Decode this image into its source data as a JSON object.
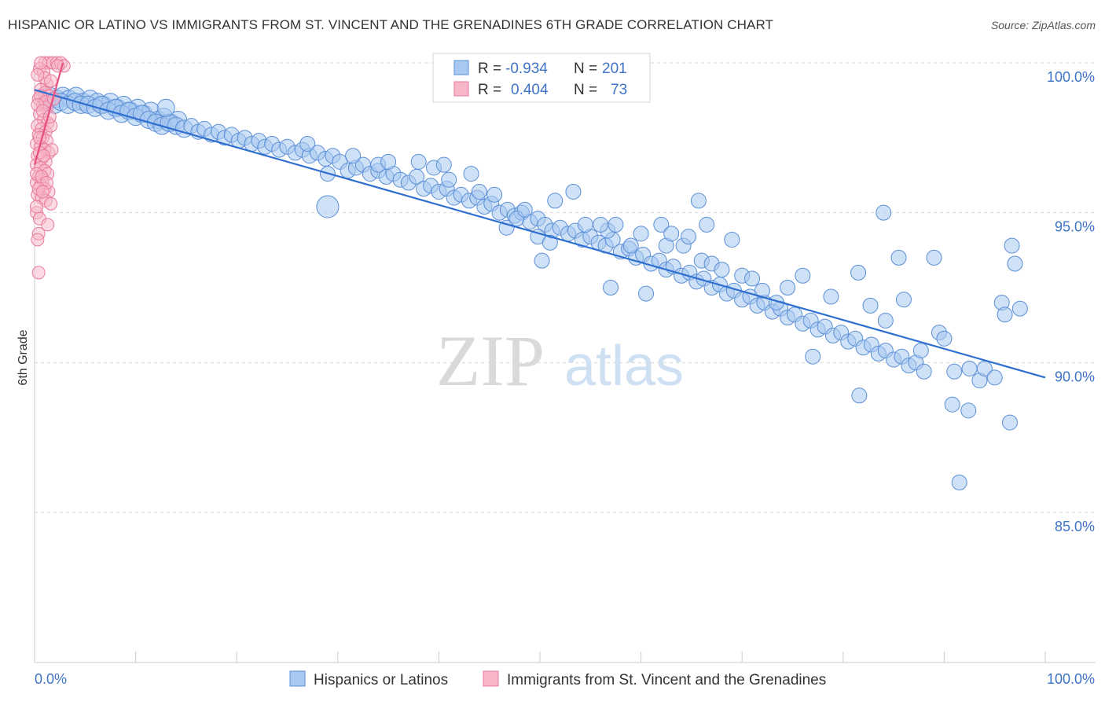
{
  "title": "HISPANIC OR LATINO VS IMMIGRANTS FROM ST. VINCENT AND THE GRENADINES 6TH GRADE CORRELATION CHART",
  "source": "Source: ZipAtlas.com",
  "watermark": {
    "zip": "ZIP",
    "atlas": "atlas"
  },
  "colors": {
    "blue_fill": "#a8c8f0",
    "blue_stroke": "#5b8fd6",
    "blue_line": "#2f6fd0",
    "pink_fill": "#f7b6c8",
    "pink_stroke": "#e87a9c",
    "pink_line": "#e5507e",
    "tick_label": "#3d74c8",
    "grid": "#d9d9d9",
    "axis_title": "#333333"
  },
  "chart_data": {
    "type": "scatter",
    "ylabel": "6th Grade",
    "xlim": [
      0,
      100
    ],
    "ylim": [
      80.4,
      101.4
    ],
    "x_tick_labels": [
      {
        "value": 0,
        "label": "0.0%"
      },
      {
        "value": 100,
        "label": "100.0%"
      }
    ],
    "y_tick_labels": [
      {
        "value": 100,
        "label": "100.0%"
      },
      {
        "value": 95,
        "label": "95.0%"
      },
      {
        "value": 90,
        "label": "90.0%"
      },
      {
        "value": 85,
        "label": "85.0%"
      }
    ],
    "y_gridlines": [
      100,
      95,
      90,
      85
    ],
    "x_minor_ticks": [
      10,
      20,
      30,
      40,
      50,
      60,
      70,
      80,
      90,
      100
    ],
    "stats": [
      {
        "r_label": "R =",
        "r": "-0.934",
        "n_label": "N =",
        "n": "201"
      },
      {
        "r_label": "R =",
        "r": "0.404",
        "n_label": "N =",
        "n": "73"
      }
    ],
    "series": [
      {
        "name": "Hispanics or Latinos",
        "color": "blue",
        "trend": {
          "x0": 0,
          "y0": 99.1,
          "x1": 100,
          "y1": 89.5
        },
        "points": [
          [
            1.5,
            98.9
          ],
          [
            2.2,
            98.8
          ],
          [
            2.8,
            98.9
          ],
          [
            3.4,
            98.8
          ],
          [
            4.1,
            98.9
          ],
          [
            4.8,
            98.7
          ],
          [
            5.5,
            98.8
          ],
          [
            6.2,
            98.7
          ],
          [
            6.8,
            98.6
          ],
          [
            7.5,
            98.7
          ],
          [
            8.2,
            98.5
          ],
          [
            8.8,
            98.6
          ],
          [
            9.5,
            98.4
          ],
          [
            10.2,
            98.5
          ],
          [
            10.8,
            98.3
          ],
          [
            11.5,
            98.4
          ],
          [
            12.2,
            98.1
          ],
          [
            12.8,
            98.2
          ],
          [
            13.5,
            98.0
          ],
          [
            14.2,
            98.1
          ],
          [
            1.2,
            98.7
          ],
          [
            2.0,
            98.6
          ],
          [
            2.6,
            98.7
          ],
          [
            3.3,
            98.6
          ],
          [
            4.0,
            98.7
          ],
          [
            4.6,
            98.6
          ],
          [
            5.3,
            98.6
          ],
          [
            6.0,
            98.5
          ],
          [
            6.6,
            98.6
          ],
          [
            7.3,
            98.4
          ],
          [
            8.0,
            98.5
          ],
          [
            8.6,
            98.3
          ],
          [
            9.3,
            98.4
          ],
          [
            10.0,
            98.2
          ],
          [
            10.6,
            98.3
          ],
          [
            11.3,
            98.1
          ],
          [
            12.0,
            98.0
          ],
          [
            12.6,
            97.9
          ],
          [
            13.3,
            98.0
          ],
          [
            14.0,
            97.9
          ],
          [
            14.8,
            97.8
          ],
          [
            15.5,
            97.9
          ],
          [
            16.2,
            97.7
          ],
          [
            16.8,
            97.8
          ],
          [
            17.5,
            97.6
          ],
          [
            18.2,
            97.7
          ],
          [
            18.8,
            97.5
          ],
          [
            19.5,
            97.6
          ],
          [
            20.2,
            97.4
          ],
          [
            20.8,
            97.5
          ],
          [
            21.5,
            97.3
          ],
          [
            22.2,
            97.4
          ],
          [
            22.8,
            97.2
          ],
          [
            23.5,
            97.3
          ],
          [
            24.2,
            97.1
          ],
          [
            25.0,
            97.2
          ],
          [
            25.8,
            97.0
          ],
          [
            26.5,
            97.1
          ],
          [
            27.2,
            96.9
          ],
          [
            28.0,
            97.0
          ],
          [
            28.8,
            96.8
          ],
          [
            29.5,
            96.9
          ],
          [
            30.2,
            96.7
          ],
          [
            31.0,
            96.4
          ],
          [
            31.8,
            96.5
          ],
          [
            32.5,
            96.6
          ],
          [
            33.2,
            96.3
          ],
          [
            34.0,
            96.4
          ],
          [
            34.8,
            96.2
          ],
          [
            35.5,
            96.3
          ],
          [
            36.2,
            96.1
          ],
          [
            37.0,
            96.0
          ],
          [
            37.8,
            96.2
          ],
          [
            38.5,
            95.8
          ],
          [
            39.2,
            95.9
          ],
          [
            40.0,
            95.7
          ],
          [
            40.8,
            95.8
          ],
          [
            41.5,
            95.5
          ],
          [
            42.2,
            95.6
          ],
          [
            43.0,
            95.4
          ],
          [
            43.8,
            95.5
          ],
          [
            44.5,
            95.2
          ],
          [
            45.2,
            95.3
          ],
          [
            46.0,
            95.0
          ],
          [
            46.8,
            95.1
          ],
          [
            47.5,
            94.9
          ],
          [
            48.2,
            95.0
          ],
          [
            49.0,
            94.7
          ],
          [
            49.8,
            94.8
          ],
          [
            50.5,
            94.6
          ],
          [
            51.2,
            94.4
          ],
          [
            52.0,
            94.5
          ],
          [
            52.8,
            94.3
          ],
          [
            53.5,
            94.4
          ],
          [
            54.2,
            94.1
          ],
          [
            55.0,
            94.2
          ],
          [
            55.8,
            94.0
          ],
          [
            56.5,
            93.9
          ],
          [
            57.2,
            94.1
          ],
          [
            58.0,
            93.7
          ],
          [
            58.8,
            93.8
          ],
          [
            59.5,
            93.5
          ],
          [
            60.2,
            93.6
          ],
          [
            61.0,
            93.3
          ],
          [
            61.8,
            93.4
          ],
          [
            62.5,
            93.1
          ],
          [
            63.2,
            93.2
          ],
          [
            64.0,
            92.9
          ],
          [
            64.8,
            93.0
          ],
          [
            65.5,
            92.7
          ],
          [
            66.2,
            92.8
          ],
          [
            67.0,
            92.5
          ],
          [
            67.8,
            92.6
          ],
          [
            68.5,
            92.3
          ],
          [
            69.2,
            92.4
          ],
          [
            70.0,
            92.1
          ],
          [
            70.8,
            92.2
          ],
          [
            71.5,
            91.9
          ],
          [
            72.2,
            92.0
          ],
          [
            73.0,
            91.7
          ],
          [
            73.8,
            91.8
          ],
          [
            74.5,
            91.5
          ],
          [
            75.2,
            91.6
          ],
          [
            76.0,
            91.3
          ],
          [
            76.8,
            91.4
          ],
          [
            77.5,
            91.1
          ],
          [
            78.2,
            91.2
          ],
          [
            79.0,
            90.9
          ],
          [
            79.8,
            91.0
          ],
          [
            80.5,
            90.7
          ],
          [
            81.2,
            90.8
          ],
          [
            82.0,
            90.5
          ],
          [
            82.8,
            90.6
          ],
          [
            83.5,
            90.3
          ],
          [
            84.2,
            90.4
          ],
          [
            85.0,
            90.1
          ],
          [
            85.8,
            90.2
          ],
          [
            86.5,
            89.9
          ],
          [
            87.2,
            90.0
          ],
          [
            88.0,
            89.7
          ],
          [
            13.0,
            98.5
          ],
          [
            27.0,
            97.3
          ],
          [
            29.0,
            96.3
          ],
          [
            31.5,
            96.9
          ],
          [
            34.0,
            96.6
          ],
          [
            35.0,
            96.7
          ],
          [
            38.0,
            96.7
          ],
          [
            39.5,
            96.5
          ],
          [
            40.5,
            96.6
          ],
          [
            41.0,
            96.1
          ],
          [
            43.2,
            96.3
          ],
          [
            45.5,
            95.6
          ],
          [
            46.7,
            94.5
          ],
          [
            47.7,
            94.8
          ],
          [
            44.0,
            95.7
          ],
          [
            48.5,
            95.1
          ],
          [
            49.8,
            94.2
          ],
          [
            51.0,
            94.0
          ],
          [
            53.3,
            95.7
          ],
          [
            50.2,
            93.4
          ],
          [
            51.5,
            95.4
          ],
          [
            54.5,
            94.6
          ],
          [
            56.7,
            94.4
          ],
          [
            57.5,
            94.6
          ],
          [
            56.0,
            94.6
          ],
          [
            59.0,
            93.9
          ],
          [
            60.0,
            94.3
          ],
          [
            62.0,
            94.6
          ],
          [
            62.5,
            93.9
          ],
          [
            63.0,
            94.3
          ],
          [
            64.2,
            93.9
          ],
          [
            64.7,
            94.2
          ],
          [
            65.7,
            95.4
          ],
          [
            66.0,
            93.4
          ],
          [
            66.5,
            94.6
          ],
          [
            67.0,
            93.3
          ],
          [
            68.0,
            93.1
          ],
          [
            69.0,
            94.1
          ],
          [
            70.0,
            92.9
          ],
          [
            71.0,
            92.8
          ],
          [
            72.0,
            92.4
          ],
          [
            74.5,
            92.5
          ],
          [
            76.0,
            92.9
          ],
          [
            78.8,
            92.2
          ],
          [
            81.5,
            93.0
          ],
          [
            82.7,
            91.9
          ],
          [
            84.2,
            91.4
          ],
          [
            86.0,
            92.1
          ],
          [
            87.7,
            90.4
          ],
          [
            89.5,
            91.0
          ],
          [
            90.0,
            90.8
          ],
          [
            91.0,
            89.7
          ],
          [
            92.5,
            89.8
          ],
          [
            93.5,
            89.4
          ],
          [
            94.0,
            89.8
          ],
          [
            95.7,
            92.0
          ],
          [
            95.0,
            89.5
          ],
          [
            96.0,
            91.6
          ],
          [
            97.5,
            91.8
          ],
          [
            97.0,
            93.3
          ],
          [
            81.6,
            88.9
          ],
          [
            84.0,
            95.0
          ],
          [
            85.5,
            93.5
          ],
          [
            89.0,
            93.5
          ],
          [
            96.7,
            93.9
          ],
          [
            90.8,
            88.6
          ],
          [
            92.4,
            88.4
          ],
          [
            96.5,
            88.0
          ],
          [
            91.5,
            86.0
          ],
          [
            57.0,
            92.5
          ],
          [
            60.5,
            92.3
          ],
          [
            73.4,
            92.0
          ],
          [
            77.0,
            90.2
          ]
        ],
        "big_point": [
          29.0,
          95.2
        ]
      },
      {
        "name": "Immigrants from St. Vincent and the Grenadines",
        "color": "pink",
        "trend": {
          "x0": 0,
          "y0": 96.6,
          "x1": 2.8,
          "y1": 100.0
        },
        "points": [
          [
            1.0,
            100.0
          ],
          [
            1.4,
            100.0
          ],
          [
            1.8,
            100.0
          ],
          [
            2.2,
            100.0
          ],
          [
            2.6,
            100.0
          ],
          [
            2.9,
            99.9
          ],
          [
            0.5,
            99.8
          ],
          [
            0.9,
            99.7
          ],
          [
            1.2,
            99.3
          ],
          [
            0.6,
            99.1
          ],
          [
            1.0,
            99.0
          ],
          [
            1.5,
            98.9
          ],
          [
            0.4,
            98.8
          ],
          [
            0.8,
            98.6
          ],
          [
            1.2,
            98.5
          ],
          [
            0.5,
            98.3
          ],
          [
            0.9,
            98.1
          ],
          [
            1.3,
            98.0
          ],
          [
            0.3,
            97.9
          ],
          [
            0.7,
            97.8
          ],
          [
            1.1,
            97.7
          ],
          [
            1.6,
            97.9
          ],
          [
            0.4,
            97.6
          ],
          [
            0.8,
            97.5
          ],
          [
            1.2,
            97.4
          ],
          [
            0.2,
            97.3
          ],
          [
            0.6,
            97.2
          ],
          [
            1.0,
            97.1
          ],
          [
            1.4,
            97.0
          ],
          [
            1.7,
            97.1
          ],
          [
            0.3,
            96.9
          ],
          [
            0.7,
            96.8
          ],
          [
            1.1,
            96.7
          ],
          [
            0.2,
            96.6
          ],
          [
            0.6,
            96.5
          ],
          [
            1.0,
            96.4
          ],
          [
            1.3,
            96.3
          ],
          [
            0.4,
            96.2
          ],
          [
            0.8,
            96.1
          ],
          [
            0.2,
            96.0
          ],
          [
            0.6,
            95.9
          ],
          [
            1.0,
            95.8
          ],
          [
            1.4,
            95.7
          ],
          [
            0.3,
            95.6
          ],
          [
            0.7,
            95.5
          ],
          [
            1.1,
            95.4
          ],
          [
            1.6,
            95.3
          ],
          [
            0.2,
            95.0
          ],
          [
            0.5,
            94.8
          ],
          [
            1.3,
            94.6
          ],
          [
            0.4,
            94.3
          ],
          [
            0.3,
            94.1
          ],
          [
            0.4,
            93.0
          ],
          [
            0.6,
            98.9
          ],
          [
            1.1,
            98.7
          ],
          [
            1.9,
            98.8
          ],
          [
            0.3,
            98.6
          ],
          [
            0.8,
            98.4
          ],
          [
            1.5,
            98.2
          ],
          [
            0.5,
            97.0
          ],
          [
            0.9,
            96.9
          ],
          [
            0.2,
            96.3
          ],
          [
            0.7,
            96.2
          ],
          [
            1.2,
            96.0
          ],
          [
            0.4,
            95.8
          ],
          [
            0.8,
            95.7
          ],
          [
            0.2,
            95.2
          ],
          [
            1.0,
            99.5
          ],
          [
            0.3,
            99.6
          ],
          [
            0.6,
            100.0
          ],
          [
            1.6,
            99.4
          ],
          [
            2.3,
            99.9
          ],
          [
            0.5,
            97.5
          ]
        ]
      }
    ]
  }
}
